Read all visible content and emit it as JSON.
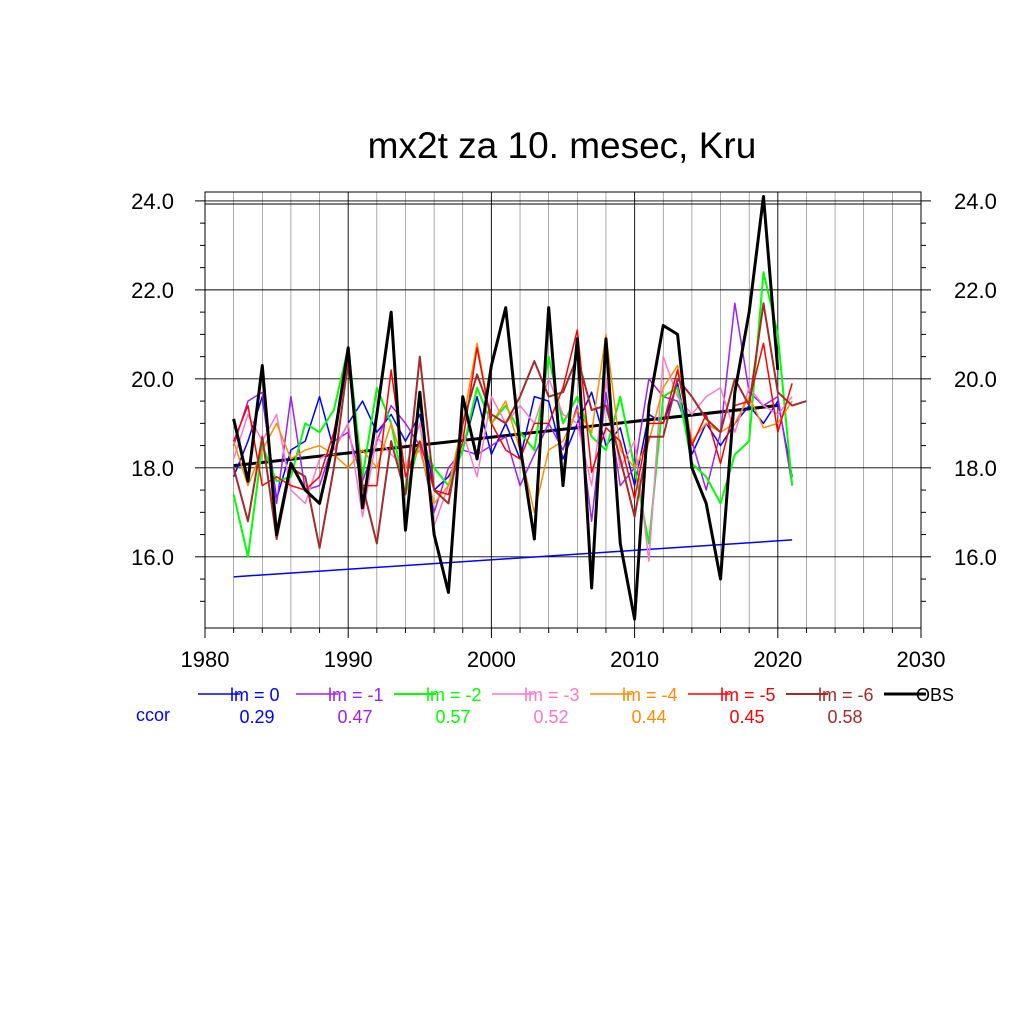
{
  "chart_data": {
    "type": "line",
    "title": "mx2t za 10. mesec, Kru",
    "xlabel": "",
    "ylabel": "",
    "xlim": [
      1980,
      2030
    ],
    "ylim": [
      14.4,
      24.2
    ],
    "x_ticks": [
      1980,
      1990,
      2000,
      2010,
      2020,
      2030
    ],
    "x_tick_labels": [
      "1980",
      "1990",
      "2000",
      "2010",
      "2020",
      "2030"
    ],
    "y_ticks": [
      16.0,
      18.0,
      20.0,
      22.0,
      24.0
    ],
    "y_tick_labels": [
      "16.0",
      "18.0",
      "20.0",
      "22.0",
      "24.0"
    ],
    "grid": true,
    "ccor_label": "ccor",
    "legend_placement": "bottom",
    "series": [
      {
        "name": "lm = 0",
        "color": "#0000ff",
        "width": 1.5,
        "ccor": "0.29",
        "x": [
          1982,
          1983,
          1984,
          1985,
          1986,
          1987,
          1988,
          1989,
          1990,
          1991,
          1992,
          1993,
          1994,
          1995,
          1996,
          1997,
          1998,
          1999,
          2000,
          2001,
          2002,
          2003,
          2004,
          2005,
          2006,
          2007,
          2008,
          2009,
          2010,
          2011,
          2012,
          2013,
          2014,
          2015,
          2016,
          2017,
          2018,
          2019,
          2020,
          2021
        ],
        "y": [
          17.8,
          18.6,
          19.6,
          17.3,
          18.4,
          18.6,
          19.6,
          18.4,
          19.0,
          19.5,
          18.8,
          19.2,
          18.6,
          19.2,
          17.5,
          17.8,
          18.4,
          19.6,
          18.3,
          19.0,
          18.2,
          19.6,
          19.5,
          18.2,
          19.0,
          19.7,
          18.5,
          18.9,
          17.6,
          19.2,
          19.0,
          19.9,
          18.3,
          19.0,
          18.5,
          19.0,
          19.4,
          19.0,
          19.5,
          17.8
        ]
      },
      {
        "name": "lm = -1",
        "color": "#a020f0",
        "width": 1.5,
        "ccor": "0.47",
        "x": [
          1982,
          1983,
          1984,
          1985,
          1986,
          1987,
          1988,
          1989,
          1990,
          1991,
          1992,
          1993,
          1994,
          1995,
          1996,
          1997,
          1998,
          1999,
          2000,
          2001,
          2002,
          2003,
          2004,
          2005,
          2006,
          2007,
          2008,
          2009,
          2010,
          2011,
          2012,
          2013,
          2014,
          2015,
          2016,
          2017,
          2018,
          2019,
          2020,
          2021
        ],
        "y": [
          18.5,
          19.5,
          19.7,
          17.2,
          19.6,
          17.5,
          17.6,
          18.6,
          18.8,
          17.7,
          18.6,
          19.4,
          19.0,
          18.5,
          17.0,
          18.0,
          18.4,
          18.3,
          18.5,
          18.7,
          17.6,
          18.3,
          19.0,
          18.4,
          19.4,
          16.8,
          19.7,
          17.6,
          18.0,
          20.0,
          19.6,
          19.5,
          18.6,
          17.5,
          18.8,
          21.7,
          19.7,
          19.4,
          19.6,
          17.6
        ]
      },
      {
        "name": "lm = -2",
        "color": "#00ff00",
        "width": 2,
        "ccor": "0.57",
        "x": [
          1982,
          1983,
          1984,
          1985,
          1986,
          1987,
          1988,
          1989,
          1990,
          1991,
          1992,
          1993,
          1994,
          1995,
          1996,
          1997,
          1998,
          1999,
          2000,
          2001,
          2002,
          2003,
          2004,
          2005,
          2006,
          2007,
          2008,
          2009,
          2010,
          2011,
          2012,
          2013,
          2014,
          2015,
          2016,
          2017,
          2018,
          2019,
          2020,
          2021
        ],
        "y": [
          17.4,
          16.0,
          18.5,
          17.7,
          17.8,
          19.0,
          18.8,
          19.3,
          20.7,
          17.8,
          19.8,
          19.0,
          17.4,
          18.6,
          18.0,
          17.6,
          18.4,
          19.8,
          19.0,
          19.4,
          18.8,
          18.4,
          20.5,
          19.0,
          19.6,
          18.7,
          18.4,
          19.6,
          18.0,
          16.3,
          19.6,
          19.8,
          18.1,
          17.8,
          17.2,
          18.3,
          18.6,
          22.4,
          21.0,
          17.6
        ]
      },
      {
        "name": "lm = -3",
        "color": "#ff77c8",
        "width": 1.5,
        "ccor": "0.52",
        "x": [
          1982,
          1983,
          1984,
          1985,
          1986,
          1987,
          1988,
          1989,
          1990,
          1991,
          1992,
          1993,
          1994,
          1995,
          1996,
          1997,
          1998,
          1999,
          2000,
          2001,
          2002,
          2003,
          2004,
          2005,
          2006,
          2007,
          2008,
          2009,
          2010,
          2011,
          2012,
          2013,
          2014,
          2015,
          2016,
          2017,
          2018,
          2019,
          2020,
          2021
        ],
        "y": [
          18.2,
          19.2,
          18.6,
          19.2,
          17.5,
          17.2,
          18.2,
          18.4,
          19.0,
          16.9,
          18.7,
          18.3,
          18.0,
          19.0,
          16.7,
          17.6,
          18.8,
          17.8,
          19.6,
          19.0,
          19.4,
          19.0,
          20.0,
          19.2,
          19.0,
          17.6,
          20.0,
          18.0,
          18.6,
          15.9,
          20.5,
          19.6,
          19.2,
          19.6,
          19.8,
          18.8,
          19.8,
          19.4,
          19.2,
          19.6
        ]
      },
      {
        "name": "lm = -4",
        "color": "#ff8c00",
        "width": 1.5,
        "ccor": "0.44",
        "x": [
          1982,
          1983,
          1984,
          1985,
          1986,
          1987,
          1988,
          1989,
          1990,
          1991,
          1992,
          1993,
          1994,
          1995,
          1996,
          1997,
          1998,
          1999,
          2000,
          2001,
          2002,
          2003,
          2004,
          2005,
          2006,
          2007,
          2008,
          2009,
          2010,
          2011,
          2012,
          2013,
          2014,
          2015,
          2016,
          2017,
          2018,
          2019,
          2020,
          2021
        ],
        "y": [
          18.6,
          17.6,
          18.4,
          19.0,
          18.2,
          18.4,
          18.5,
          18.3,
          18.0,
          18.4,
          18.0,
          19.0,
          18.0,
          18.4,
          17.2,
          17.6,
          19.0,
          20.8,
          19.0,
          19.5,
          18.4,
          17.0,
          18.4,
          18.6,
          19.3,
          18.8,
          21.0,
          18.4,
          18.0,
          18.6,
          19.8,
          20.3,
          18.6,
          19.0,
          18.8,
          19.0,
          19.6,
          18.9,
          19.0,
          19.5
        ]
      },
      {
        "name": "lm = -5",
        "color": "#ff0000",
        "width": 1.5,
        "ccor": "0.45",
        "x": [
          1982,
          1983,
          1984,
          1985,
          1986,
          1987,
          1988,
          1989,
          1990,
          1991,
          1992,
          1993,
          1994,
          1995,
          1996,
          1997,
          1998,
          1999,
          2000,
          2001,
          2002,
          2003,
          2004,
          2005,
          2006,
          2007,
          2008,
          2009,
          2010,
          2011,
          2012,
          2013,
          2014,
          2015,
          2016,
          2017,
          2018,
          2019,
          2020,
          2021
        ],
        "y": [
          18.6,
          19.4,
          17.6,
          17.8,
          17.6,
          17.5,
          17.8,
          18.8,
          20.5,
          17.6,
          17.6,
          20.2,
          17.8,
          18.6,
          17.5,
          17.4,
          18.6,
          20.7,
          19.0,
          18.4,
          18.2,
          19.0,
          19.0,
          19.8,
          21.1,
          17.9,
          18.9,
          18.6,
          17.3,
          19.0,
          19.0,
          20.2,
          18.5,
          19.2,
          18.1,
          19.4,
          19.5,
          20.8,
          18.8,
          19.9
        ]
      },
      {
        "name": "lm = -6",
        "color": "#a52a2a",
        "width": 2,
        "ccor": "0.58",
        "x": [
          1982,
          1983,
          1984,
          1985,
          1986,
          1987,
          1988,
          1989,
          1990,
          1991,
          1992,
          1993,
          1994,
          1995,
          1996,
          1997,
          1998,
          1999,
          2000,
          2001,
          2002,
          2003,
          2004,
          2005,
          2006,
          2007,
          2008,
          2009,
          2010,
          2011,
          2012,
          2013,
          2014,
          2015,
          2016,
          2017,
          2018,
          2019,
          2020,
          2021,
          2022
        ],
        "y": [
          18.0,
          16.8,
          18.7,
          16.4,
          18.0,
          17.8,
          16.2,
          18.0,
          20.4,
          17.6,
          16.3,
          18.6,
          17.4,
          20.5,
          17.5,
          17.2,
          19.0,
          20.1,
          19.2,
          19.0,
          19.6,
          20.4,
          19.6,
          19.7,
          20.5,
          19.3,
          19.4,
          18.2,
          16.9,
          18.7,
          18.7,
          20.0,
          19.6,
          19.1,
          18.8,
          20.0,
          19.4,
          21.7,
          19.7,
          19.4,
          19.5
        ]
      },
      {
        "name": "OBS",
        "color": "#000000",
        "width": 3,
        "ccor": "",
        "x": [
          1982,
          1983,
          1984,
          1985,
          1986,
          1987,
          1988,
          1989,
          1990,
          1991,
          1992,
          1993,
          1994,
          1995,
          1996,
          1997,
          1998,
          1999,
          2000,
          2001,
          2002,
          2003,
          2004,
          2005,
          2006,
          2007,
          2008,
          2009,
          2010,
          2011,
          2012,
          2013,
          2014,
          2015,
          2016,
          2017,
          2018,
          2019,
          2020
        ],
        "y": [
          19.1,
          17.7,
          20.3,
          16.5,
          18.1,
          17.5,
          17.2,
          18.6,
          20.7,
          17.1,
          19.2,
          21.5,
          16.6,
          19.7,
          16.5,
          15.2,
          19.6,
          18.2,
          20.3,
          21.6,
          18.5,
          16.4,
          21.6,
          17.6,
          20.9,
          15.3,
          20.9,
          16.3,
          14.6,
          19.4,
          21.2,
          21.0,
          18.0,
          17.2,
          15.5,
          19.7,
          21.5,
          24.1,
          20.2
        ]
      }
    ],
    "trend_lines": [
      {
        "name": "lm = 0 trend",
        "color": "#0000ff",
        "width": 1.5,
        "x": [
          1982,
          2021
        ],
        "y": [
          15.55,
          16.38
        ]
      },
      {
        "name": "OBS trend",
        "color": "#000000",
        "width": 3,
        "x": [
          1982,
          2020
        ],
        "y": [
          18.05,
          19.4
        ]
      }
    ]
  }
}
